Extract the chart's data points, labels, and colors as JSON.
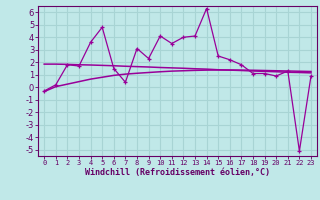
{
  "title": "",
  "xlabel": "Windchill (Refroidissement éolien,°C)",
  "background_color": "#c0e8e8",
  "grid_color": "#a8d4d4",
  "line_color": "#990099",
  "x": [
    0,
    1,
    2,
    3,
    4,
    5,
    6,
    7,
    8,
    9,
    10,
    11,
    12,
    13,
    14,
    15,
    16,
    17,
    18,
    19,
    20,
    21,
    22,
    23
  ],
  "y_jagged": [
    -0.3,
    0.2,
    1.8,
    1.7,
    3.6,
    4.8,
    1.5,
    0.4,
    3.1,
    2.3,
    4.1,
    3.5,
    4.0,
    4.1,
    6.3,
    2.5,
    2.2,
    1.8,
    1.1,
    1.1,
    0.9,
    1.3,
    -5.1,
    0.9
  ],
  "y_flat": [
    1.85,
    1.85,
    1.83,
    1.8,
    1.78,
    1.75,
    1.72,
    1.68,
    1.65,
    1.62,
    1.58,
    1.55,
    1.52,
    1.48,
    1.45,
    1.4,
    1.37,
    1.34,
    1.3,
    1.27,
    1.24,
    1.2,
    1.18,
    1.15
  ],
  "y_trend": [
    -0.35,
    0.05,
    0.25,
    0.45,
    0.65,
    0.8,
    0.95,
    1.05,
    1.12,
    1.18,
    1.24,
    1.29,
    1.32,
    1.35,
    1.37,
    1.38,
    1.38,
    1.37,
    1.36,
    1.34,
    1.32,
    1.3,
    1.28,
    1.26
  ],
  "ylim": [
    -5.5,
    6.5
  ],
  "xlim": [
    -0.5,
    23.5
  ],
  "yticks": [
    -5,
    -4,
    -3,
    -2,
    -1,
    0,
    1,
    2,
    3,
    4,
    5,
    6
  ],
  "xticks": [
    0,
    1,
    2,
    3,
    4,
    5,
    6,
    7,
    8,
    9,
    10,
    11,
    12,
    13,
    14,
    15,
    16,
    17,
    18,
    19,
    20,
    21,
    22,
    23
  ]
}
